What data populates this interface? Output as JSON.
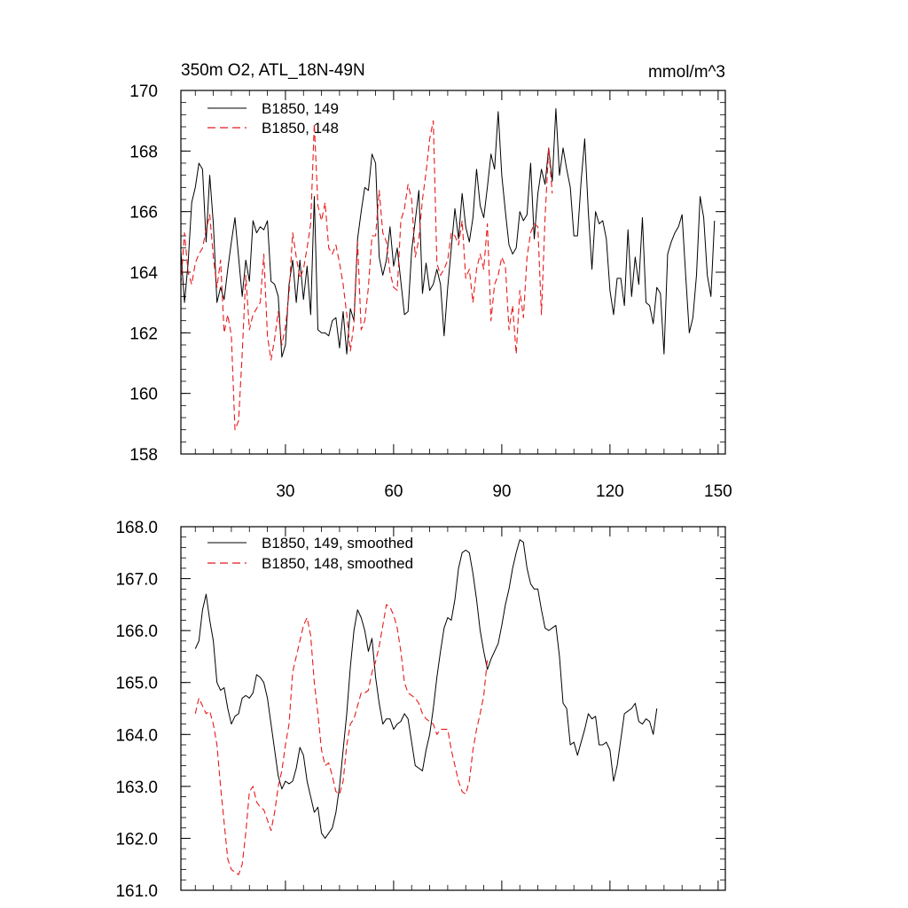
{
  "figure_title_left": "350m O2, ATL_18N-49N",
  "figure_title_right": "mmol/m^3",
  "colors": {
    "series_149": "#000000",
    "series_148": "#e8191b"
  },
  "chart_data": [
    {
      "type": "line",
      "panel": "raw",
      "title": "350m O2, ATL_18N-49N",
      "units": "mmol/m^3",
      "xlim": [
        1,
        152
      ],
      "ylim": [
        158,
        170
      ],
      "xticks": [
        30,
        60,
        90,
        120,
        150
      ],
      "xtick_labels": [
        "30",
        "60",
        "90",
        "120",
        "150"
      ],
      "yticks": [
        158,
        160,
        162,
        164,
        166,
        168,
        170
      ],
      "ytick_labels": [
        "158",
        "160",
        "162",
        "164",
        "166",
        "168",
        "170"
      ],
      "legend_position": "top-left",
      "series": [
        {
          "name": "B1850, 149",
          "style": "solid",
          "x_start": 1,
          "values": [
            164.7,
            163.0,
            164.3,
            166.3,
            166.8,
            167.6,
            167.4,
            165.0,
            167.2,
            165.6,
            163.0,
            163.5,
            163.1,
            164.1,
            165.0,
            165.8,
            164.5,
            163.2,
            164.4,
            163.7,
            165.7,
            165.3,
            165.5,
            165.4,
            165.7,
            163.7,
            163.6,
            163.2,
            161.2,
            161.6,
            163.6,
            164.4,
            163.0,
            164.4,
            163.1,
            164.2,
            162.6,
            166.5,
            162.1,
            162.0,
            162.0,
            161.9,
            162.4,
            162.5,
            161.5,
            162.7,
            161.3,
            162.8,
            162.4,
            165.1,
            166.0,
            166.8,
            166.7,
            167.9,
            167.6,
            164.5,
            163.9,
            164.4,
            165.5,
            164.2,
            164.8,
            163.7,
            162.6,
            162.7,
            164.7,
            165.7,
            166.7,
            163.3,
            164.3,
            163.4,
            163.6,
            164.1,
            163.6,
            161.9,
            163.5,
            164.8,
            166.1,
            165.1,
            166.6,
            165.5,
            165.0,
            165.8,
            167.4,
            166.2,
            165.8,
            166.8,
            167.9,
            167.4,
            169.3,
            167.2,
            166.0,
            164.9,
            164.6,
            164.8,
            166.0,
            165.7,
            165.9,
            167.6,
            165.1,
            166.6,
            167.4,
            166.9,
            168.1,
            167.0,
            169.4,
            167.2,
            168.1,
            167.4,
            166.8,
            165.2,
            165.2,
            167.0,
            168.4,
            166.0,
            164.1,
            166.0,
            165.6,
            165.7,
            165.1,
            163.4,
            162.6,
            163.8,
            163.8,
            162.9,
            165.4,
            163.2,
            164.5,
            163.6,
            165.8,
            163.0,
            162.9,
            162.3,
            163.5,
            163.3,
            161.3,
            164.6,
            165.0,
            165.3,
            165.5,
            165.9,
            163.9,
            162.0,
            162.5,
            163.9,
            166.5,
            165.8,
            163.9,
            163.2,
            165.7
          ]
        },
        {
          "name": "B1850, 148",
          "style": "dashed",
          "x_start": 1,
          "values": [
            163.6,
            165.3,
            164.0,
            163.6,
            164.3,
            164.6,
            164.8,
            165.4,
            165.9,
            164.5,
            163.5,
            164.4,
            162.0,
            162.6,
            161.9,
            158.8,
            159.1,
            161.3,
            163.9,
            162.1,
            162.6,
            162.8,
            163.0,
            164.6,
            161.9,
            161.1,
            161.8,
            162.7,
            161.6,
            162.2,
            163.3,
            165.3,
            164.5,
            163.8,
            164.1,
            164.8,
            165.6,
            168.9,
            166.2,
            165.7,
            166.3,
            164.8,
            164.6,
            164.9,
            164.3,
            163.6,
            162.6,
            161.4,
            162.3,
            165.0,
            162.1,
            162.4,
            163.5,
            165.2,
            165.2,
            166.7,
            165.3,
            165.0,
            164.0,
            163.5,
            163.4,
            165.7,
            166.1,
            166.9,
            166.4,
            164.5,
            165.1,
            166.4,
            167.3,
            168.4,
            169.0,
            164.3,
            163.9,
            164.1,
            164.4,
            165.3,
            165.2,
            164.9,
            165.7,
            163.8,
            164.1,
            163.0,
            164.1,
            164.6,
            164.1,
            165.6,
            162.4,
            163.6,
            163.9,
            164.5,
            164.2,
            162.1,
            162.9,
            161.3,
            163.4,
            162.5,
            164.5,
            165.3,
            165.6,
            165.5,
            162.6,
            165.8,
            168.1,
            166.6
          ]
        }
      ]
    },
    {
      "type": "line",
      "panel": "smoothed",
      "xlim": [
        1,
        152
      ],
      "ylim": [
        161.0,
        168.0
      ],
      "xticks": [
        30,
        60,
        90,
        120,
        150
      ],
      "yticks": [
        161.0,
        162.0,
        163.0,
        164.0,
        165.0,
        166.0,
        167.0,
        168.0
      ],
      "ytick_labels": [
        "161.0",
        "162.0",
        "163.0",
        "164.0",
        "165.0",
        "166.0",
        "167.0",
        "168.0"
      ],
      "legend_position": "top-left",
      "series": [
        {
          "name": "B1850, 149, smoothed",
          "style": "solid",
          "x_start": 5,
          "values": [
            165.65,
            165.8,
            166.4,
            166.7,
            166.2,
            165.8,
            165.0,
            164.85,
            164.9,
            164.5,
            164.2,
            164.35,
            164.4,
            164.7,
            164.75,
            164.7,
            164.8,
            165.15,
            165.1,
            165.0,
            164.7,
            164.2,
            163.7,
            163.2,
            162.95,
            163.1,
            163.05,
            163.1,
            163.35,
            163.75,
            163.6,
            163.1,
            162.8,
            162.5,
            162.6,
            162.1,
            162.0,
            162.1,
            162.2,
            162.5,
            163.0,
            163.7,
            164.4,
            165.3,
            166.0,
            166.4,
            166.25,
            166.0,
            165.6,
            165.85,
            165.1,
            164.6,
            164.2,
            164.3,
            164.3,
            164.1,
            164.2,
            164.25,
            164.4,
            164.3,
            163.85,
            163.4,
            163.35,
            163.3,
            163.7,
            164.0,
            164.5,
            165.1,
            165.6,
            166.05,
            166.25,
            166.2,
            166.6,
            167.2,
            167.5,
            167.55,
            167.5,
            167.1,
            166.6,
            166.0,
            165.6,
            165.25,
            165.45,
            165.6,
            165.75,
            166.1,
            166.5,
            166.8,
            167.2,
            167.5,
            167.75,
            167.7,
            167.2,
            166.9,
            166.8,
            166.8,
            166.4,
            166.05,
            166.0,
            166.05,
            166.1,
            165.5,
            164.6,
            164.5,
            163.8,
            163.85,
            163.6,
            163.85,
            164.1,
            164.4,
            164.3,
            164.35,
            163.8,
            163.8,
            163.85,
            163.7,
            163.1,
            163.4,
            163.9,
            164.4,
            164.45,
            164.5,
            164.6,
            164.25,
            164.2,
            164.3,
            164.25,
            164.0,
            164.5
          ]
        },
        {
          "name": "B1850, 148, smoothed",
          "style": "dashed",
          "x_start": 5,
          "values": [
            164.4,
            164.7,
            164.55,
            164.4,
            164.45,
            164.2,
            163.8,
            163.0,
            162.3,
            161.6,
            161.4,
            161.35,
            161.3,
            161.5,
            162.1,
            162.9,
            163.0,
            162.7,
            162.6,
            162.55,
            162.35,
            162.15,
            162.5,
            163.0,
            163.3,
            163.8,
            164.2,
            165.2,
            165.5,
            165.8,
            166.1,
            166.25,
            165.9,
            165.0,
            164.4,
            163.7,
            163.4,
            163.45,
            163.2,
            162.9,
            162.85,
            163.1,
            163.8,
            164.2,
            164.3,
            164.55,
            164.8,
            164.8,
            164.85,
            165.2,
            165.4,
            165.7,
            166.1,
            166.5,
            166.45,
            166.3,
            166.05,
            165.6,
            165.0,
            164.8,
            164.75,
            164.7,
            164.6,
            164.4,
            164.3,
            164.25,
            164.2,
            164.0,
            164.1,
            164.1,
            164.1,
            163.7,
            163.4,
            163.1,
            162.9,
            162.85,
            163.1,
            163.7,
            164.1,
            164.4,
            164.75,
            165.45
          ]
        }
      ]
    }
  ]
}
